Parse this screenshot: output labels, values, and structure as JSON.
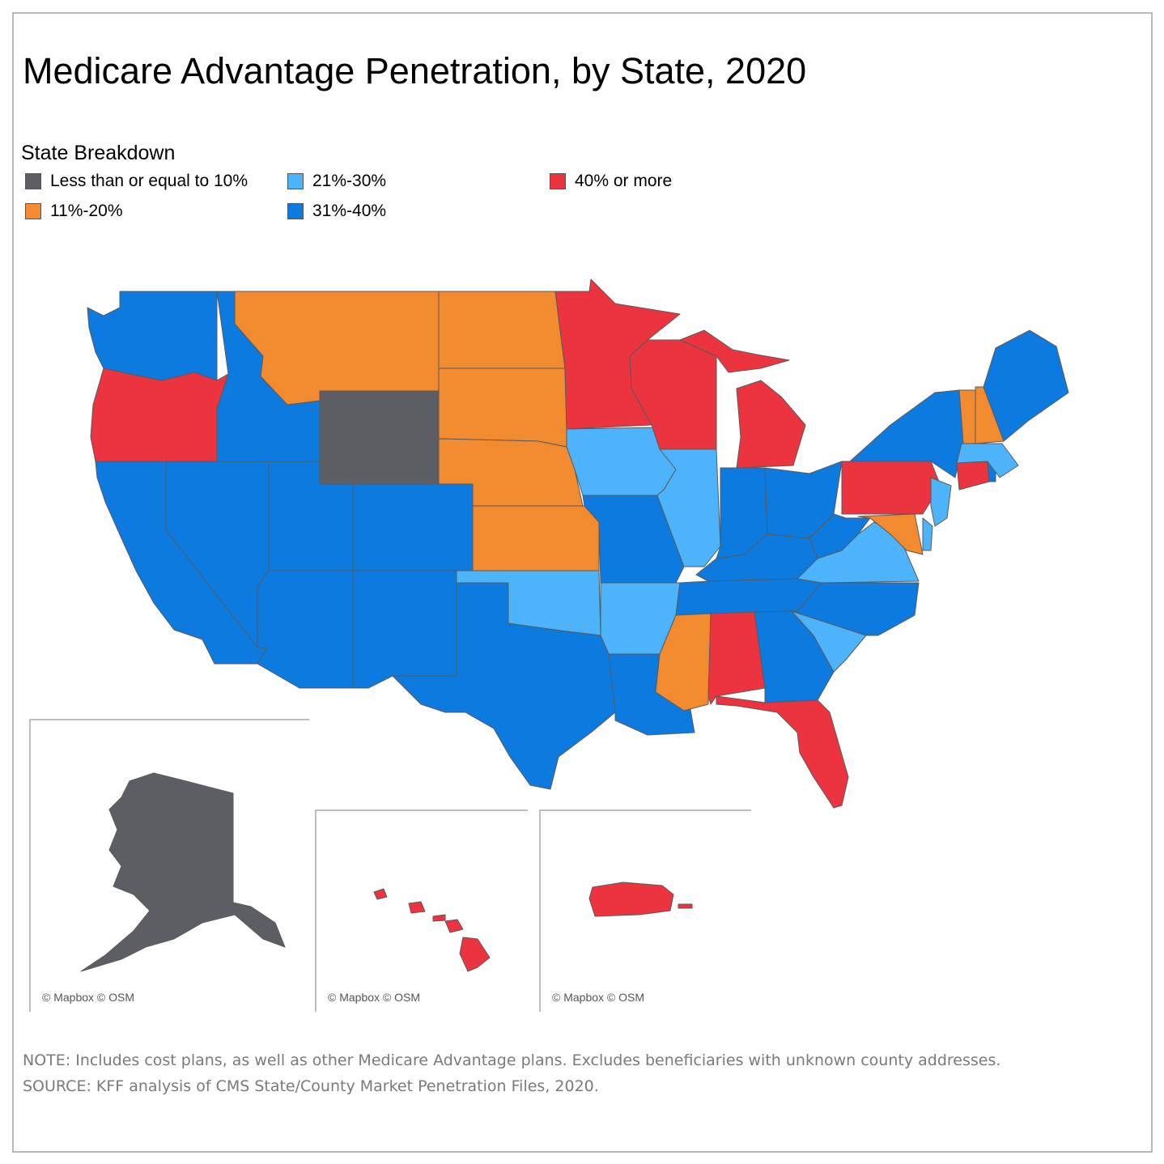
{
  "title": "Medicare Advantage Penetration, by State, 2020",
  "legend": {
    "title": "State Breakdown",
    "items": [
      {
        "label": "Less than or equal to 10%",
        "color": "#5c5e63"
      },
      {
        "label": "11%-20%",
        "color": "#f28b30"
      },
      {
        "label": "21%-30%",
        "color": "#4db3fb"
      },
      {
        "label": "31%-40%",
        "color": "#0c7adf"
      },
      {
        "label": "40% or more",
        "color": "#ec3340"
      }
    ]
  },
  "chart_data": {
    "type": "map",
    "categories": [
      "Less than or equal to 10%",
      "11%-20%",
      "21%-30%",
      "31%-40%",
      "40% or more"
    ],
    "states": {
      "WA": "31%-40%",
      "OR": "40% or more",
      "CA": "31%-40%",
      "NV": "31%-40%",
      "ID": "31%-40%",
      "MT": "11%-20%",
      "WY": "Less than or equal to 10%",
      "UT": "31%-40%",
      "AZ": "31%-40%",
      "CO": "31%-40%",
      "NM": "31%-40%",
      "ND": "11%-20%",
      "SD": "11%-20%",
      "NE": "11%-20%",
      "KS": "11%-20%",
      "OK": "21%-30%",
      "TX": "31%-40%",
      "MN": "40% or more",
      "IA": "21%-30%",
      "MO": "31%-40%",
      "AR": "21%-30%",
      "LA": "31%-40%",
      "WI": "40% or more",
      "IL": "21%-30%",
      "MI": "40% or more",
      "IN": "31%-40%",
      "OH": "31%-40%",
      "KY": "31%-40%",
      "TN": "31%-40%",
      "MS": "11%-20%",
      "AL": "40% or more",
      "GA": "31%-40%",
      "FL": "40% or more",
      "SC": "21%-30%",
      "NC": "31%-40%",
      "VA": "21%-30%",
      "WV": "31%-40%",
      "PA": "40% or more",
      "NY": "31%-40%",
      "NJ": "21%-30%",
      "DE": "21%-30%",
      "MD": "11%-20%",
      "CT": "40% or more",
      "RI": "31%-40%",
      "MA": "21%-30%",
      "VT": "11%-20%",
      "NH": "11%-20%",
      "ME": "31%-40%",
      "AK": "Less than or equal to 10%",
      "HI": "40% or more",
      "PR": "40% or more"
    }
  },
  "attribution": "© Mapbox © OSM",
  "note": "NOTE: Includes cost plans, as well as other Medicare Advantage plans. Excludes beneficiaries with unknown county addresses.",
  "source": "SOURCE: KFF analysis of CMS State/County Market Penetration Files, 2020."
}
